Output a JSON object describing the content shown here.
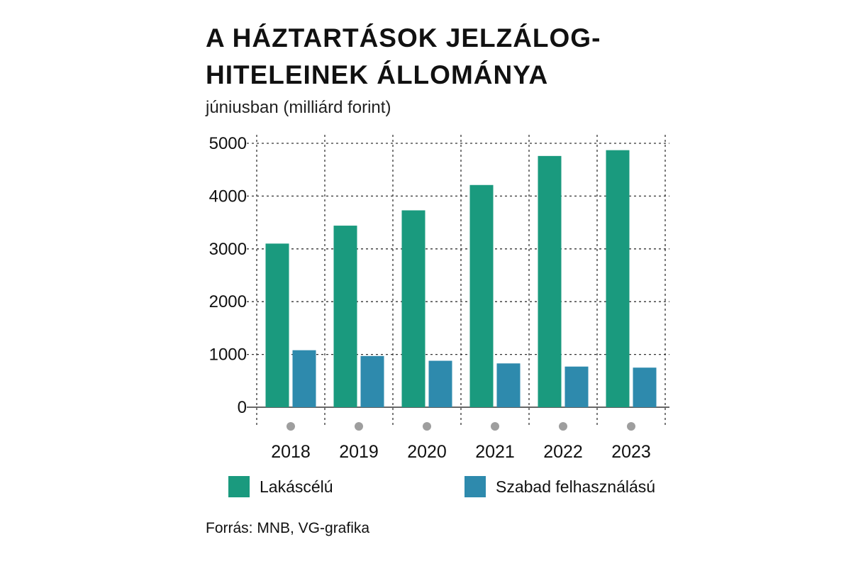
{
  "title": "A HÁZTARTÁSOK JELZÁLOG-HITELEINEK ÁLLOMÁNYA",
  "subtitle": "júniusban (milliárd forint)",
  "source": "Forrás: MNB, VG-grafika",
  "colors": {
    "lakascelu": "#1a9a7e",
    "szabad": "#2e8aad",
    "grid": "#333333",
    "dot": "#9e9e9e"
  },
  "chart_data": {
    "type": "bar",
    "title": "A HÁZTARTÁSOK JELZÁLOG-HITELEINEK ÁLLOMÁNYA",
    "subtitle": "júniusban (milliárd forint)",
    "categories": [
      "2018",
      "2019",
      "2020",
      "2021",
      "2022",
      "2023"
    ],
    "series": [
      {
        "name": "Lakáscélú",
        "color": "#1a9a7e",
        "values": [
          3100,
          3440,
          3730,
          4210,
          4760,
          4870
        ]
      },
      {
        "name": "Szabad felhasználású",
        "color": "#2e8aad",
        "values": [
          1080,
          970,
          880,
          830,
          770,
          750
        ]
      }
    ],
    "ylim": [
      0,
      5000
    ],
    "yticks": [
      0,
      1000,
      2000,
      3000,
      4000,
      5000
    ],
    "grid": true,
    "legend": "bottom"
  }
}
